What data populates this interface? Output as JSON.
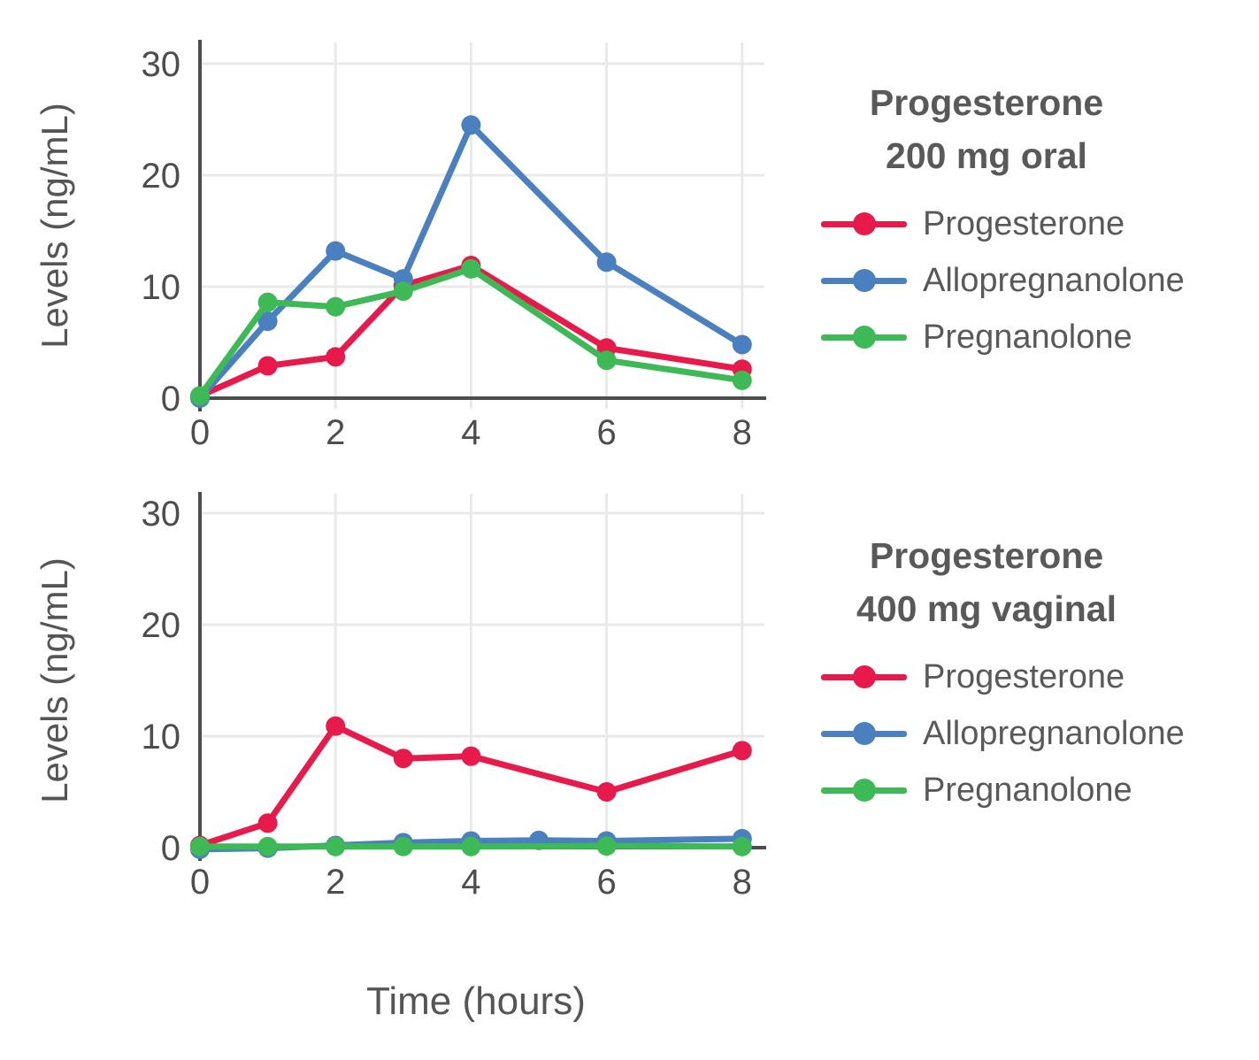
{
  "figure": {
    "xlabel": "Time (hours)",
    "ylabel": "Levels (ng/mL)"
  },
  "style": {
    "background": "#ffffff",
    "axis_color": "#4d4d4d",
    "grid_color": "#e9e9e9",
    "tick_text_color": "#4d4d4d",
    "label_text_color": "#555555",
    "legend_text_color": "#595959",
    "progesterone_color": "#e8194b",
    "allopregnanolone_color": "#4a80bf",
    "pregnanolone_color": "#3db955"
  },
  "chart_data": [
    {
      "type": "line",
      "title": "Progesterone 200 mg oral",
      "legend_title": [
        "Progesterone",
        "200 mg oral"
      ],
      "legend_position": "right",
      "ylabel": "Levels (ng/mL)",
      "xlabel": "Time (hours)",
      "grid": true,
      "xlim": [
        0,
        8.35
      ],
      "ylim": [
        0,
        32
      ],
      "xticks": [
        0,
        2,
        4,
        6,
        8
      ],
      "yticks": [
        0,
        10,
        20,
        30
      ],
      "series": [
        {
          "name": "Progesterone",
          "color": "#e8194b",
          "x": [
            0,
            1,
            2,
            3,
            4,
            6,
            8
          ],
          "values": [
            0.2,
            2.9,
            3.7,
            10.1,
            11.9,
            4.5,
            2.6
          ]
        },
        {
          "name": "Allopregnanolone",
          "color": "#4a80bf",
          "x": [
            0,
            1,
            2,
            3,
            4,
            6,
            8
          ],
          "values": [
            0.0,
            6.9,
            13.2,
            10.7,
            24.5,
            12.2,
            4.8
          ]
        },
        {
          "name": "Pregnanolone",
          "color": "#3db955",
          "x": [
            0,
            1,
            2,
            3,
            4,
            6,
            8
          ],
          "values": [
            0.2,
            8.6,
            8.2,
            9.6,
            11.6,
            3.4,
            1.6
          ]
        }
      ]
    },
    {
      "type": "line",
      "title": "Progesterone 400 mg vaginal",
      "legend_title": [
        "Progesterone",
        "400 mg vaginal"
      ],
      "legend_position": "right",
      "ylabel": "Levels (ng/mL)",
      "xlabel": "Time (hours)",
      "grid": true,
      "xlim": [
        0,
        8.35
      ],
      "ylim": [
        0,
        32
      ],
      "xticks": [
        0,
        2,
        4,
        6,
        8
      ],
      "yticks": [
        0,
        10,
        20,
        30
      ],
      "series": [
        {
          "name": "Progesterone",
          "color": "#e8194b",
          "x": [
            0,
            1,
            2,
            3,
            4,
            6,
            8
          ],
          "values": [
            0.2,
            2.2,
            10.9,
            8.0,
            8.2,
            5.0,
            8.7
          ]
        },
        {
          "name": "Allopregnanolone",
          "color": "#4a80bf",
          "x": [
            0,
            1,
            2,
            3,
            4,
            5,
            6,
            8
          ],
          "values": [
            -0.15,
            -0.05,
            0.2,
            0.45,
            0.6,
            0.65,
            0.6,
            0.8
          ]
        },
        {
          "name": "Pregnanolone",
          "color": "#3db955",
          "x": [
            0,
            1,
            2,
            3,
            4,
            6,
            8
          ],
          "values": [
            0.1,
            0.1,
            0.1,
            0.1,
            0.1,
            0.15,
            0.1
          ]
        }
      ]
    }
  ]
}
